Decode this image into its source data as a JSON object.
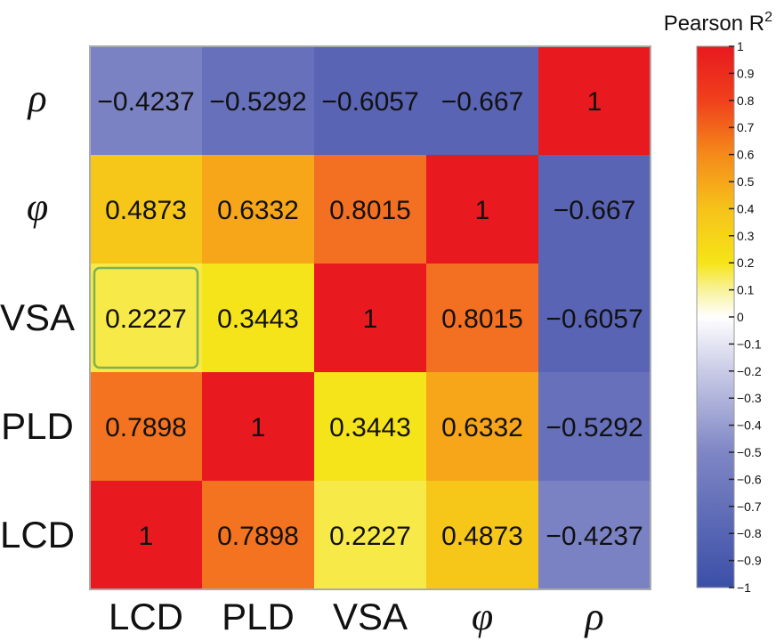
{
  "chart_data": {
    "type": "heatmap",
    "title": "",
    "colorbar_title": "Pearson R",
    "colorbar_title_superscript": "2",
    "x_labels": [
      "LCD",
      "PLD",
      "VSA",
      "φ",
      "ρ"
    ],
    "y_labels_top_to_bottom": [
      "ρ",
      "φ",
      "VSA",
      "PLD",
      "LCD"
    ],
    "italic_labels": [
      "φ",
      "ρ"
    ],
    "matrix_rows_top_to_bottom": [
      [
        "−0.4237",
        "−0.5292",
        "−0.6057",
        "−0.667",
        "1"
      ],
      [
        "0.4873",
        "0.6332",
        "0.8015",
        "1",
        "−0.667"
      ],
      [
        "0.2227",
        "0.3443",
        "1",
        "0.8015",
        "−0.6057"
      ],
      [
        "0.7898",
        "1",
        "0.3443",
        "0.6332",
        "−0.5292"
      ],
      [
        "1",
        "0.7898",
        "0.2227",
        "0.4873",
        "−0.4237"
      ]
    ],
    "values_rows_top_to_bottom": [
      [
        -0.4237,
        -0.5292,
        -0.6057,
        -0.667,
        1
      ],
      [
        0.4873,
        0.6332,
        0.8015,
        1,
        -0.667
      ],
      [
        0.2227,
        0.3443,
        1,
        0.8015,
        -0.6057
      ],
      [
        0.7898,
        1,
        0.3443,
        0.6332,
        -0.5292
      ],
      [
        1,
        0.7898,
        0.2227,
        0.4873,
        -0.4237
      ]
    ],
    "colorbar_range": [
      -1,
      1
    ],
    "colorbar_ticks": [
      "1",
      "0.9",
      "0.8",
      "0.7",
      "0.6",
      "0.5",
      "0.4",
      "0.3",
      "0.2",
      "0.1",
      "0",
      "−0.1",
      "−0.2",
      "−0.3",
      "−0.4",
      "−0.5",
      "−0.6",
      "−0.7",
      "−0.8",
      "−0.9",
      "−1"
    ],
    "colorbar_tick_values": [
      1,
      0.9,
      0.8,
      0.7,
      0.6,
      0.5,
      0.4,
      0.3,
      0.2,
      0.1,
      0,
      -0.1,
      -0.2,
      -0.3,
      -0.4,
      -0.5,
      -0.6,
      -0.7,
      -0.8,
      -0.9,
      -1
    ],
    "colors": {
      "neg1": "#3b4fa8",
      "zero": "#ffffff",
      "pos_low": "#f8f29a",
      "pos_mid": "#f6e418",
      "pos_high": "#f37021",
      "pos1": "#e8191f",
      "border": "#a9abab",
      "highlight_outline": "#7bb256"
    },
    "highlighted_cell": {
      "row": 2,
      "col": 0
    }
  }
}
